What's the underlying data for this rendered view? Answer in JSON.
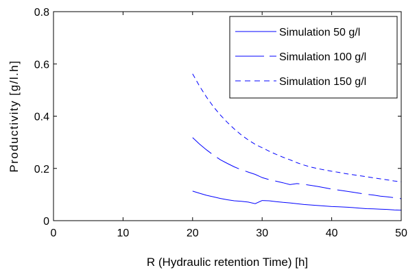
{
  "chart_data": {
    "type": "line",
    "title": "",
    "xlabel": "R (Hydraulic retention Time) [h]",
    "ylabel": "Productivity [g/l.h]",
    "xlim": [
      0,
      50
    ],
    "ylim": [
      0,
      0.8
    ],
    "xticks": [
      0,
      10,
      20,
      30,
      40,
      50
    ],
    "yticks": [
      0,
      0.2,
      0.4,
      0.6,
      0.8
    ],
    "xtick_labels": [
      "0",
      "10",
      "20",
      "30",
      "40",
      "50"
    ],
    "ytick_labels": [
      "0",
      "0.2",
      "0.4",
      "0.6",
      "0.8"
    ],
    "grid": false,
    "legend_position": "top-right",
    "color": "#0000ff",
    "series": [
      {
        "name": "Simulation 50 g/l",
        "line_style": "solid",
        "x": [
          20,
          21,
          22,
          23,
          24,
          25,
          26,
          27,
          28,
          29,
          30,
          31,
          32,
          33,
          34,
          35,
          36,
          37,
          38,
          39,
          40,
          41,
          42,
          43,
          44,
          45,
          46,
          47,
          48,
          49,
          50
        ],
        "y": [
          0.113,
          0.105,
          0.097,
          0.091,
          0.085,
          0.08,
          0.076,
          0.074,
          0.071,
          0.065,
          0.077,
          0.076,
          0.073,
          0.07,
          0.068,
          0.065,
          0.062,
          0.06,
          0.058,
          0.056,
          0.054,
          0.053,
          0.052,
          0.05,
          0.048,
          0.046,
          0.045,
          0.044,
          0.043,
          0.041,
          0.04
        ]
      },
      {
        "name": "Simulation 100 g/l",
        "line_style": "long-dash",
        "x": [
          20,
          21,
          22,
          23,
          24,
          25,
          26,
          27,
          28,
          29,
          30,
          31,
          32,
          33,
          34,
          35,
          36,
          37,
          38,
          39,
          40,
          41,
          42,
          43,
          44,
          45,
          46,
          47,
          48,
          49,
          50
        ],
        "y": [
          0.318,
          0.293,
          0.271,
          0.251,
          0.233,
          0.219,
          0.206,
          0.195,
          0.186,
          0.177,
          0.165,
          0.157,
          0.151,
          0.145,
          0.138,
          0.142,
          0.139,
          0.135,
          0.131,
          0.126,
          0.121,
          0.117,
          0.113,
          0.109,
          0.105,
          0.101,
          0.098,
          0.094,
          0.091,
          0.088,
          0.084
        ]
      },
      {
        "name": "Simulation 150 g/l",
        "line_style": "dashed",
        "x": [
          20,
          21,
          22,
          23,
          24,
          25,
          26,
          27,
          28,
          29,
          30,
          31,
          32,
          33,
          34,
          35,
          36,
          37,
          38,
          39,
          40,
          41,
          42,
          43,
          44,
          45,
          46,
          47,
          48,
          49,
          50
        ],
        "y": [
          0.562,
          0.515,
          0.473,
          0.436,
          0.404,
          0.376,
          0.351,
          0.328,
          0.309,
          0.292,
          0.279,
          0.266,
          0.254,
          0.243,
          0.233,
          0.222,
          0.213,
          0.205,
          0.199,
          0.194,
          0.189,
          0.185,
          0.18,
          0.176,
          0.172,
          0.168,
          0.164,
          0.16,
          0.156,
          0.152,
          0.149
        ]
      }
    ]
  }
}
